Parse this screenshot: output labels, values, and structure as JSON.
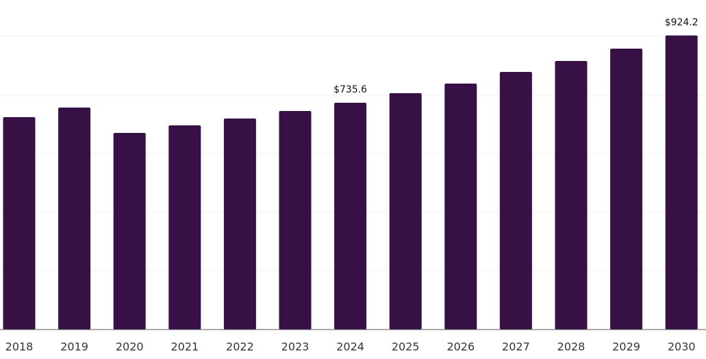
{
  "chart_data": {
    "type": "bar",
    "categories": [
      "2018",
      "2019",
      "2020",
      "2021",
      "2022",
      "2023",
      "2024",
      "2025",
      "2026",
      "2027",
      "2028",
      "2029",
      "2030"
    ],
    "values": [
      695.2,
      722.1,
      651.1,
      672.2,
      691.4,
      712.5,
      735.6,
      762.4,
      789.3,
      822.0,
      852.7,
      887.3,
      924.2
    ],
    "value_labels": [
      null,
      null,
      null,
      null,
      null,
      null,
      "$735.6",
      null,
      null,
      null,
      null,
      null,
      "$924.2"
    ],
    "color": "#371046",
    "ylim": [
      100,
      1000
    ]
  }
}
